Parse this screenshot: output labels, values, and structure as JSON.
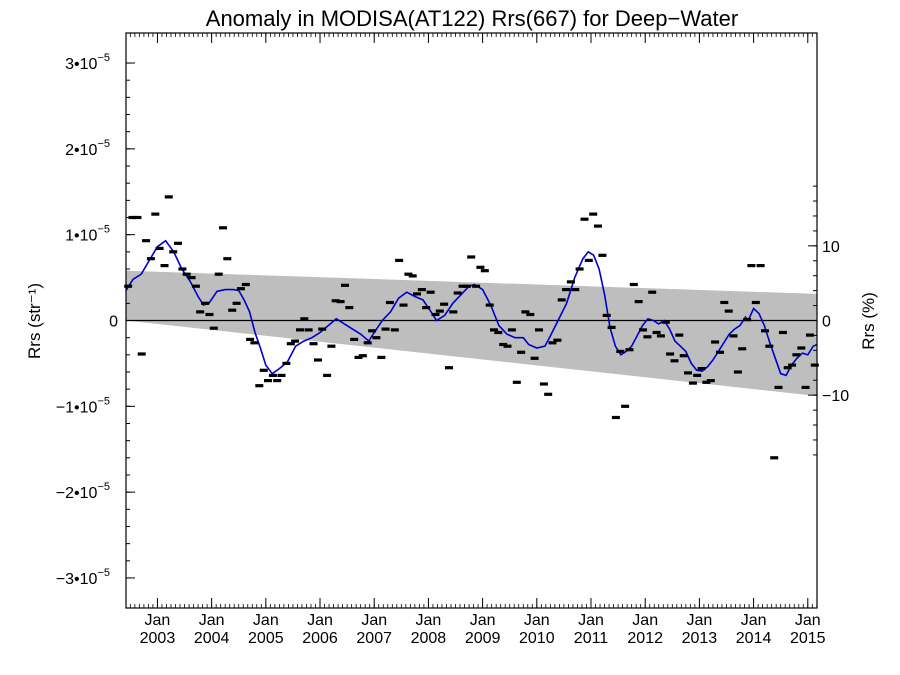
{
  "chart_data": {
    "type": "scatter",
    "title": "Anomaly in MODISA(AT122) Rrs(667) for Deep−Water",
    "ylabel_left": "Rrs (str⁻¹)",
    "ylabel_right": "Rrs (%)",
    "ylim": [
      -3.35e-05,
      3.35e-05
    ],
    "xlim": [
      2002.42,
      2015.17
    ],
    "y_ticks": [
      {
        "value": 3e-05,
        "label": "3•10",
        "exp": "−5"
      },
      {
        "value": 2e-05,
        "label": "2•10",
        "exp": "−5"
      },
      {
        "value": 1e-05,
        "label": "1•10",
        "exp": "−5"
      },
      {
        "value": 0,
        "label": "0",
        "exp": ""
      },
      {
        "value": -1e-05,
        "label": "−1•10",
        "exp": "−5"
      },
      {
        "value": -2e-05,
        "label": "−2•10",
        "exp": "−5"
      },
      {
        "value": -3e-05,
        "label": "−3•10",
        "exp": "−5"
      }
    ],
    "right_ticks": [
      {
        "value": 10,
        "label": "10"
      },
      {
        "value": 0,
        "label": "0"
      },
      {
        "value": -10,
        "label": "−10"
      }
    ],
    "right_scale_per_percent": 8.7e-07,
    "x_ticks": [
      {
        "value": 2003.0,
        "label1": "Jan",
        "label2": "2003"
      },
      {
        "value": 2004.0,
        "label1": "Jan",
        "label2": "2004"
      },
      {
        "value": 2005.0,
        "label1": "Jan",
        "label2": "2005"
      },
      {
        "value": 2006.0,
        "label1": "Jan",
        "label2": "2006"
      },
      {
        "value": 2007.0,
        "label1": "Jan",
        "label2": "2007"
      },
      {
        "value": 2008.0,
        "label1": "Jan",
        "label2": "2008"
      },
      {
        "value": 2009.0,
        "label1": "Jan",
        "label2": "2009"
      },
      {
        "value": 2010.0,
        "label1": "Jan",
        "label2": "2010"
      },
      {
        "value": 2011.0,
        "label1": "Jan",
        "label2": "2011"
      },
      {
        "value": 2012.0,
        "label1": "Jan",
        "label2": "2012"
      },
      {
        "value": 2013.0,
        "label1": "Jan",
        "label2": "2013"
      },
      {
        "value": 2014.0,
        "label1": "Jan",
        "label2": "2014"
      },
      {
        "value": 2015.0,
        "label1": "Jan",
        "label2": "2015"
      }
    ],
    "band": {
      "upper": [
        [
          2002.42,
          5.8e-06
        ],
        [
          2015.17,
          3.1e-06
        ]
      ],
      "lower": [
        [
          2002.42,
          0.0
        ],
        [
          2015.17,
          -8.8e-06
        ]
      ],
      "color": "#bebebe"
    },
    "zero_line": true,
    "colors": {
      "smooth": "#0000cc",
      "points": "#000000",
      "band": "#bebebe"
    },
    "monthly_points": [
      [
        2002.46,
        4e-06
      ],
      [
        2002.54,
        1.2e-05
      ],
      [
        2002.63,
        1.2e-05
      ],
      [
        2002.71,
        -3.9e-06
      ],
      [
        2002.79,
        9.3e-06
      ],
      [
        2002.88,
        7.2e-06
      ],
      [
        2002.96,
        1.24e-05
      ],
      [
        2003.04,
        8.4e-06
      ],
      [
        2003.13,
        6.4e-06
      ],
      [
        2003.21,
        1.44e-05
      ],
      [
        2003.29,
        8e-06
      ],
      [
        2003.38,
        9e-06
      ],
      [
        2003.46,
        6e-06
      ],
      [
        2003.54,
        5.4e-06
      ],
      [
        2003.63,
        5e-06
      ],
      [
        2003.71,
        4e-06
      ],
      [
        2003.79,
        1e-06
      ],
      [
        2003.88,
        2e-06
      ],
      [
        2003.96,
        7e-07
      ],
      [
        2004.04,
        -9e-07
      ],
      [
        2004.13,
        5.4e-06
      ],
      [
        2004.21,
        1.08e-05
      ],
      [
        2004.29,
        7.2e-06
      ],
      [
        2004.38,
        1.2e-06
      ],
      [
        2004.46,
        2e-06
      ],
      [
        2004.54,
        3.7e-06
      ],
      [
        2004.63,
        4.2e-06
      ],
      [
        2004.71,
        -2.2e-06
      ],
      [
        2004.79,
        -2.6e-06
      ],
      [
        2004.88,
        -7.6e-06
      ],
      [
        2004.96,
        -5.8e-06
      ],
      [
        2005.04,
        -7e-06
      ],
      [
        2005.13,
        -6.4e-06
      ],
      [
        2005.21,
        -7e-06
      ],
      [
        2005.29,
        -6.4e-06
      ],
      [
        2005.38,
        -5e-06
      ],
      [
        2005.46,
        -2.7e-06
      ],
      [
        2005.54,
        -2.4e-06
      ],
      [
        2005.63,
        -1.1e-06
      ],
      [
        2005.71,
        2e-07
      ],
      [
        2005.79,
        -1.1e-06
      ],
      [
        2005.88,
        -2.7e-06
      ],
      [
        2005.96,
        -4.6e-06
      ],
      [
        2006.04,
        -1e-06
      ],
      [
        2006.13,
        -6.4e-06
      ],
      [
        2006.21,
        -3e-06
      ],
      [
        2006.29,
        2.3e-06
      ],
      [
        2006.38,
        2.2e-06
      ],
      [
        2006.46,
        4.1e-06
      ],
      [
        2006.54,
        1.5e-06
      ],
      [
        2006.63,
        -2.2e-06
      ],
      [
        2006.71,
        -4.3e-06
      ],
      [
        2006.79,
        -4.1e-06
      ],
      [
        2006.88,
        -2.6e-06
      ],
      [
        2006.96,
        -1.2e-06
      ],
      [
        2007.04,
        -2e-06
      ],
      [
        2007.13,
        -4.3e-06
      ],
      [
        2007.21,
        -1e-06
      ],
      [
        2007.29,
        2.1e-06
      ],
      [
        2007.38,
        -1.1e-06
      ],
      [
        2007.46,
        7e-06
      ],
      [
        2007.54,
        1.8e-06
      ],
      [
        2007.63,
        5.4e-06
      ],
      [
        2007.71,
        5.2e-06
      ],
      [
        2007.79,
        3.1e-06
      ],
      [
        2007.88,
        3.6e-06
      ],
      [
        2007.96,
        1.5e-06
      ],
      [
        2008.04,
        3.3e-06
      ],
      [
        2008.13,
        7e-07
      ],
      [
        2008.21,
        1.1e-06
      ],
      [
        2008.29,
        1.9e-06
      ],
      [
        2008.38,
        -5.5e-06
      ],
      [
        2008.46,
        1e-06
      ],
      [
        2008.54,
        3.2e-06
      ],
      [
        2008.63,
        4e-06
      ],
      [
        2008.71,
        4e-06
      ],
      [
        2008.79,
        7.4e-06
      ],
      [
        2008.88,
        4e-06
      ],
      [
        2008.96,
        6.2e-06
      ],
      [
        2009.04,
        5.8e-06
      ],
      [
        2009.13,
        1.8e-06
      ],
      [
        2009.21,
        -1.1e-06
      ],
      [
        2009.29,
        -1.4e-06
      ],
      [
        2009.38,
        -2.8e-06
      ],
      [
        2009.46,
        -3e-06
      ],
      [
        2009.54,
        -1.1e-06
      ],
      [
        2009.63,
        -7.2e-06
      ],
      [
        2009.71,
        -3.7e-06
      ],
      [
        2009.79,
        1e-06
      ],
      [
        2009.88,
        7e-07
      ],
      [
        2009.96,
        -4.4e-06
      ],
      [
        2010.04,
        -1.1e-06
      ],
      [
        2010.13,
        -7.4e-06
      ],
      [
        2010.21,
        -8.6e-06
      ],
      [
        2010.29,
        -2.6e-06
      ],
      [
        2010.38,
        -2.3e-06
      ],
      [
        2010.46,
        2.4e-06
      ],
      [
        2010.54,
        3.6e-06
      ],
      [
        2010.63,
        4.5e-06
      ],
      [
        2010.71,
        3.6e-06
      ],
      [
        2010.79,
        6e-06
      ],
      [
        2010.88,
        1.18e-05
      ],
      [
        2010.96,
        7e-06
      ],
      [
        2011.04,
        1.24e-05
      ],
      [
        2011.13,
        1.1e-05
      ],
      [
        2011.21,
        7.6e-06
      ],
      [
        2011.29,
        6e-07
      ],
      [
        2011.38,
        -8e-07
      ],
      [
        2011.46,
        -1.13e-05
      ],
      [
        2011.54,
        -3.6e-06
      ],
      [
        2011.63,
        -1e-05
      ],
      [
        2011.71,
        -3.4e-06
      ],
      [
        2011.79,
        4.2e-06
      ],
      [
        2011.88,
        2.2e-06
      ],
      [
        2011.96,
        -1.1e-06
      ],
      [
        2012.04,
        -1.9e-06
      ],
      [
        2012.13,
        3.3e-06
      ],
      [
        2012.21,
        -1.4e-06
      ],
      [
        2012.29,
        -1.8e-06
      ],
      [
        2012.38,
        -2e-07
      ],
      [
        2012.46,
        -3.9e-06
      ],
      [
        2012.54,
        -4.7e-06
      ],
      [
        2012.63,
        -1.7e-06
      ],
      [
        2012.71,
        -4.1e-06
      ],
      [
        2012.79,
        -6.1e-06
      ],
      [
        2012.88,
        -7.3e-06
      ],
      [
        2012.96,
        -6.4e-06
      ],
      [
        2013.04,
        -5.6e-06
      ],
      [
        2013.13,
        -7.2e-06
      ],
      [
        2013.21,
        -7e-06
      ],
      [
        2013.29,
        -2.5e-06
      ],
      [
        2013.38,
        -3.7e-06
      ],
      [
        2013.46,
        2.1e-06
      ],
      [
        2013.54,
        1.1e-06
      ],
      [
        2013.63,
        -1.8e-06
      ],
      [
        2013.71,
        -6e-06
      ],
      [
        2013.79,
        -3.3e-06
      ],
      [
        2013.88,
        1e-07
      ],
      [
        2013.96,
        6.4e-06
      ],
      [
        2014.04,
        2.1e-06
      ],
      [
        2014.13,
        6.4e-06
      ],
      [
        2014.21,
        -1.2e-06
      ],
      [
        2014.29,
        -3e-06
      ],
      [
        2014.38,
        -1.6e-05
      ],
      [
        2014.46,
        -7.8e-06
      ],
      [
        2014.54,
        -1.4e-06
      ],
      [
        2014.63,
        -5.5e-06
      ],
      [
        2014.71,
        -5.2e-06
      ],
      [
        2014.79,
        -4e-06
      ],
      [
        2014.88,
        -3.2e-06
      ],
      [
        2014.96,
        -7.8e-06
      ],
      [
        2015.04,
        -1.7e-06
      ],
      [
        2015.13,
        -5.2e-06
      ]
    ],
    "smoothed_series": [
      [
        2002.42,
        3.5e-06
      ],
      [
        2002.55,
        4.8e-06
      ],
      [
        2002.7,
        5.4e-06
      ],
      [
        2002.85,
        7e-06
      ],
      [
        2003.0,
        8.6e-06
      ],
      [
        2003.15,
        9.3e-06
      ],
      [
        2003.3,
        8e-06
      ],
      [
        2003.45,
        6e-06
      ],
      [
        2003.6,
        4.6e-06
      ],
      [
        2003.75,
        2.8e-06
      ],
      [
        2003.85,
        1.8e-06
      ],
      [
        2003.95,
        2e-06
      ],
      [
        2004.1,
        3.4e-06
      ],
      [
        2004.25,
        3.6e-06
      ],
      [
        2004.4,
        3.6e-06
      ],
      [
        2004.5,
        3.5e-06
      ],
      [
        2004.6,
        2.4e-06
      ],
      [
        2004.7,
        1e-06
      ],
      [
        2004.8,
        -1.4e-06
      ],
      [
        2004.9,
        -3.2e-06
      ],
      [
        2005.0,
        -5.2e-06
      ],
      [
        2005.12,
        -6.2e-06
      ],
      [
        2005.25,
        -5.6e-06
      ],
      [
        2005.4,
        -4.8e-06
      ],
      [
        2005.55,
        -3e-06
      ],
      [
        2005.7,
        -2.4e-06
      ],
      [
        2005.85,
        -2e-06
      ],
      [
        2006.0,
        -1.4e-06
      ],
      [
        2006.15,
        -6e-07
      ],
      [
        2006.3,
        2e-07
      ],
      [
        2006.45,
        -4e-07
      ],
      [
        2006.6,
        -1e-06
      ],
      [
        2006.75,
        -1.6e-06
      ],
      [
        2006.9,
        -2.4e-06
      ],
      [
        2007.0,
        -1.4e-06
      ],
      [
        2007.15,
        0.0
      ],
      [
        2007.3,
        1e-06
      ],
      [
        2007.45,
        2.6e-06
      ],
      [
        2007.6,
        3.3e-06
      ],
      [
        2007.75,
        2.8e-06
      ],
      [
        2007.9,
        2.4e-06
      ],
      [
        2008.05,
        1e-06
      ],
      [
        2008.15,
        0.0
      ],
      [
        2008.3,
        6e-07
      ],
      [
        2008.45,
        2e-06
      ],
      [
        2008.6,
        3e-06
      ],
      [
        2008.75,
        4e-06
      ],
      [
        2008.85,
        4.2e-06
      ],
      [
        2009.0,
        3.6e-06
      ],
      [
        2009.15,
        1.8e-06
      ],
      [
        2009.3,
        -6e-07
      ],
      [
        2009.45,
        -1.6e-06
      ],
      [
        2009.6,
        -2e-06
      ],
      [
        2009.75,
        -2e-06
      ],
      [
        2009.85,
        -2.8e-06
      ],
      [
        2010.0,
        -3.2e-06
      ],
      [
        2010.15,
        -3e-06
      ],
      [
        2010.25,
        -1.8e-06
      ],
      [
        2010.4,
        1e-07
      ],
      [
        2010.55,
        2e-06
      ],
      [
        2010.7,
        5e-06
      ],
      [
        2010.85,
        7.2e-06
      ],
      [
        2010.95,
        8e-06
      ],
      [
        2011.05,
        7.6e-06
      ],
      [
        2011.15,
        6e-06
      ],
      [
        2011.25,
        3e-06
      ],
      [
        2011.35,
        -8e-07
      ],
      [
        2011.45,
        -3e-06
      ],
      [
        2011.55,
        -4e-06
      ],
      [
        2011.65,
        -3.6e-06
      ],
      [
        2011.75,
        -3e-06
      ],
      [
        2011.85,
        -1.8e-06
      ],
      [
        2011.95,
        -6e-07
      ],
      [
        2012.05,
        2e-07
      ],
      [
        2012.15,
        0.0
      ],
      [
        2012.25,
        -4e-07
      ],
      [
        2012.35,
        0.0
      ],
      [
        2012.45,
        -1e-06
      ],
      [
        2012.55,
        -2.4e-06
      ],
      [
        2012.65,
        -3e-06
      ],
      [
        2012.75,
        -3.6e-06
      ],
      [
        2012.85,
        -5e-06
      ],
      [
        2012.95,
        -5.8e-06
      ],
      [
        2013.05,
        -5.9e-06
      ],
      [
        2013.15,
        -5.4e-06
      ],
      [
        2013.25,
        -4.6e-06
      ],
      [
        2013.35,
        -3.6e-06
      ],
      [
        2013.45,
        -2.6e-06
      ],
      [
        2013.55,
        -1.6e-06
      ],
      [
        2013.65,
        -1e-06
      ],
      [
        2013.75,
        -6e-07
      ],
      [
        2013.85,
        4e-07
      ],
      [
        2013.9,
        0.0
      ],
      [
        2014.0,
        1.4e-06
      ],
      [
        2014.1,
        8e-07
      ],
      [
        2014.2,
        -6e-07
      ],
      [
        2014.3,
        -2.6e-06
      ],
      [
        2014.4,
        -4.4e-06
      ],
      [
        2014.5,
        -6.2e-06
      ],
      [
        2014.6,
        -6.4e-06
      ],
      [
        2014.7,
        -5.2e-06
      ],
      [
        2014.8,
        -4.4e-06
      ],
      [
        2014.9,
        -3.8e-06
      ],
      [
        2015.0,
        -4e-06
      ],
      [
        2015.1,
        -3e-06
      ],
      [
        2015.17,
        -2.8e-06
      ]
    ]
  }
}
